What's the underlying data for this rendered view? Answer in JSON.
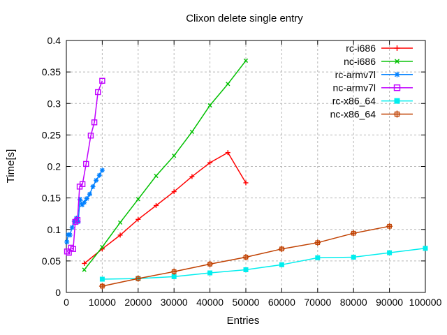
{
  "chart_data": {
    "type": "line",
    "title": "Clixon delete single entry",
    "xlabel": "Entries",
    "ylabel": "Time[s]",
    "xlim": [
      0,
      100000
    ],
    "ylim": [
      0,
      0.4
    ],
    "grid": true,
    "legend_position": "top-right-inside",
    "xticks": [
      {
        "v": 0,
        "label": "0"
      },
      {
        "v": 10000,
        "label": "10000"
      },
      {
        "v": 20000,
        "label": "20000"
      },
      {
        "v": 30000,
        "label": "30000"
      },
      {
        "v": 40000,
        "label": "40000"
      },
      {
        "v": 50000,
        "label": "50000"
      },
      {
        "v": 60000,
        "label": "60000"
      },
      {
        "v": 70000,
        "label": "70000"
      },
      {
        "v": 80000,
        "label": "80000"
      },
      {
        "v": 90000,
        "label": "90000"
      },
      {
        "v": 100000,
        "label": "100000"
      }
    ],
    "yticks": [
      {
        "v": 0,
        "label": "0"
      },
      {
        "v": 0.05,
        "label": "0.05"
      },
      {
        "v": 0.1,
        "label": "0.1"
      },
      {
        "v": 0.15,
        "label": "0.15"
      },
      {
        "v": 0.2,
        "label": "0.2"
      },
      {
        "v": 0.25,
        "label": "0.25"
      },
      {
        "v": 0.3,
        "label": "0.3"
      },
      {
        "v": 0.35,
        "label": "0.35"
      },
      {
        "v": 0.4,
        "label": "0.4"
      }
    ],
    "colors": {
      "grid": "#b8b8b8",
      "axis": "#000000",
      "background": "#ffffff"
    },
    "series": [
      {
        "name": "rc-i686",
        "color": "#ff0000",
        "marker": "plus",
        "points": [
          [
            5000,
            0.046
          ],
          [
            10000,
            0.069
          ],
          [
            15000,
            0.091
          ],
          [
            20000,
            0.116
          ],
          [
            25000,
            0.138
          ],
          [
            30000,
            0.16
          ],
          [
            35000,
            0.184
          ],
          [
            40000,
            0.206
          ],
          [
            45000,
            0.222
          ],
          [
            50000,
            0.174
          ]
        ]
      },
      {
        "name": "nc-i686",
        "color": "#00c000",
        "marker": "cross",
        "points": [
          [
            5000,
            0.036
          ],
          [
            10000,
            0.072
          ],
          [
            15000,
            0.111
          ],
          [
            20000,
            0.148
          ],
          [
            25000,
            0.185
          ],
          [
            30000,
            0.217
          ],
          [
            35000,
            0.255
          ],
          [
            40000,
            0.297
          ],
          [
            45000,
            0.331
          ],
          [
            50000,
            0.368
          ]
        ]
      },
      {
        "name": "rc-armv7l",
        "color": "#0080ff",
        "marker": "asterisk",
        "points": [
          [
            150,
            0.08
          ],
          [
            500,
            0.092
          ],
          [
            1000,
            0.091
          ],
          [
            1600,
            0.103
          ],
          [
            2200,
            0.113
          ],
          [
            2800,
            0.118
          ],
          [
            3300,
            0.112
          ],
          [
            3800,
            0.148
          ],
          [
            4400,
            0.139
          ],
          [
            5000,
            0.143
          ],
          [
            5700,
            0.149
          ],
          [
            6500,
            0.156
          ],
          [
            7400,
            0.168
          ],
          [
            8300,
            0.178
          ],
          [
            9200,
            0.186
          ],
          [
            10000,
            0.194
          ]
        ]
      },
      {
        "name": "nc-armv7l",
        "color": "#c000ff",
        "marker": "square-open",
        "points": [
          [
            200,
            0.065
          ],
          [
            700,
            0.063
          ],
          [
            1300,
            0.071
          ],
          [
            1900,
            0.069
          ],
          [
            2500,
            0.112
          ],
          [
            3100,
            0.115
          ],
          [
            3700,
            0.168
          ],
          [
            4500,
            0.172
          ],
          [
            5500,
            0.204
          ],
          [
            6800,
            0.249
          ],
          [
            7800,
            0.27
          ],
          [
            8800,
            0.318
          ],
          [
            10000,
            0.336
          ]
        ]
      },
      {
        "name": "rc-x86_64",
        "color": "#00eeee",
        "marker": "square-filled",
        "points": [
          [
            10000,
            0.021
          ],
          [
            20000,
            0.022
          ],
          [
            30000,
            0.025
          ],
          [
            40000,
            0.031
          ],
          [
            50000,
            0.036
          ],
          [
            60000,
            0.044
          ],
          [
            70000,
            0.055
          ],
          [
            80000,
            0.056
          ],
          [
            90000,
            0.063
          ],
          [
            100000,
            0.07
          ]
        ]
      },
      {
        "name": "nc-x86_64",
        "color": "#c04000",
        "marker": "boxplus",
        "points": [
          [
            10000,
            0.01
          ],
          [
            20000,
            0.022
          ],
          [
            30000,
            0.033
          ],
          [
            40000,
            0.045
          ],
          [
            50000,
            0.056
          ],
          [
            60000,
            0.069
          ],
          [
            70000,
            0.079
          ],
          [
            80000,
            0.094
          ],
          [
            90000,
            0.105
          ]
        ]
      }
    ]
  }
}
